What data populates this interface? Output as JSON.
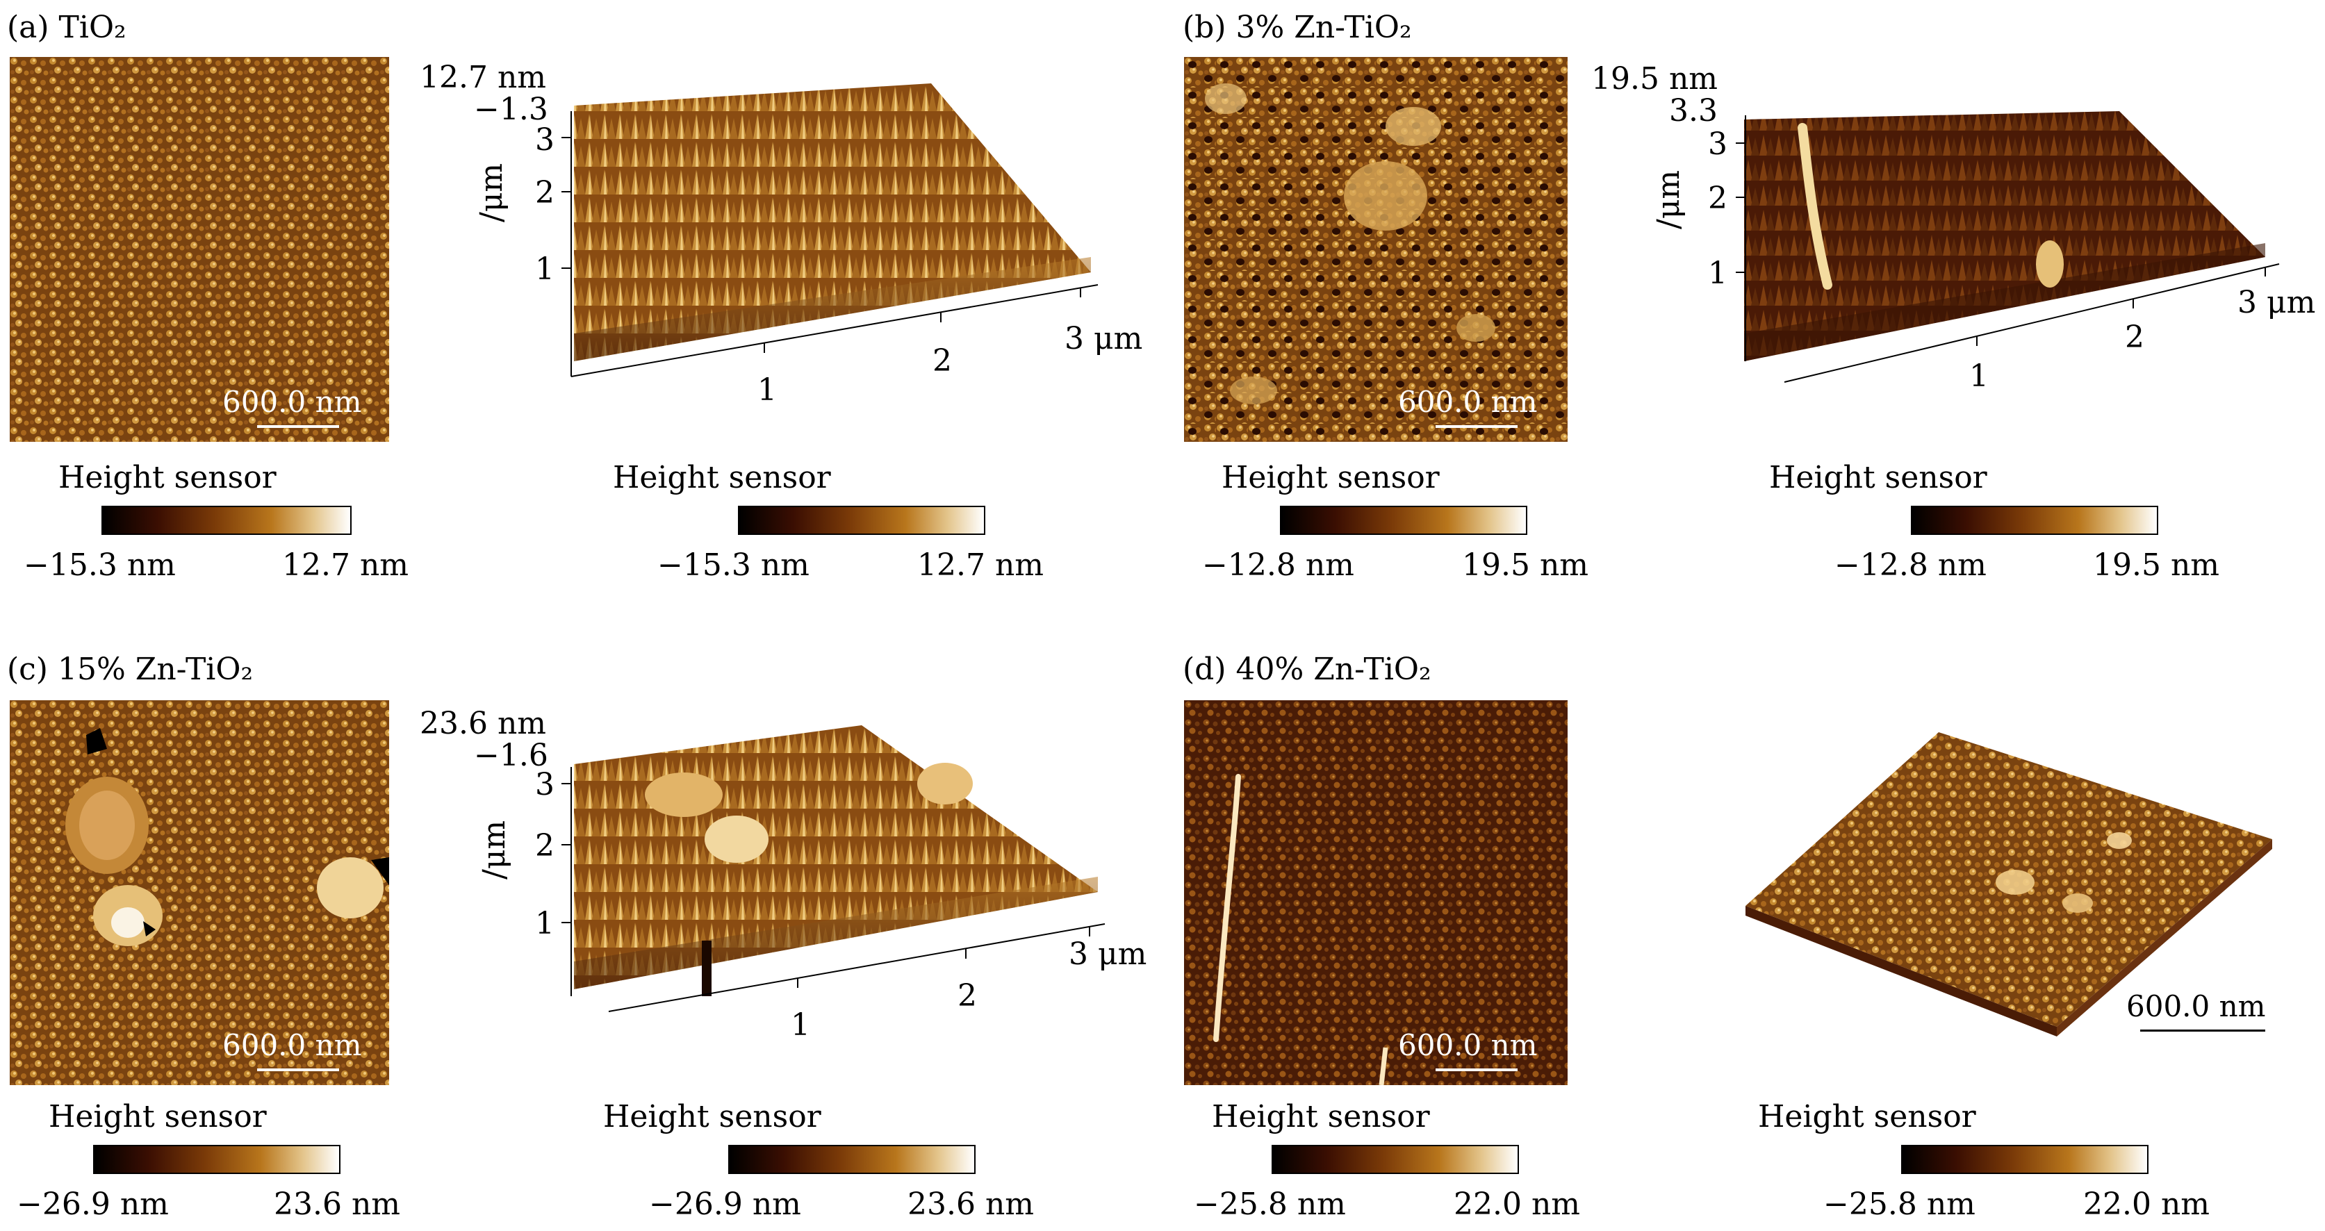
{
  "colors": {
    "afm_dark": "#3a1606",
    "afm_mid": "#9a5a16",
    "afm_light": "#e0b060",
    "colorbar_stops": [
      "#000000",
      "#3a0e02",
      "#7a3a08",
      "#b8761c",
      "#e3c48a",
      "#ffffff"
    ]
  },
  "panels": {
    "a": {
      "label": "(a) TiO₂",
      "scale_bar": "600.0 nm",
      "height_sensor_2d": "Height sensor",
      "height_sensor_3d": "Height sensor",
      "cbar_min": "−15.3 nm",
      "cbar_max": "12.7 nm",
      "z_top": "12.7 nm",
      "z_bottom": "−1.3",
      "y_axis_label": "/μm",
      "y_ticks": [
        "3",
        "2",
        "1"
      ],
      "x_ticks": [
        "1",
        "2",
        "3 μm"
      ]
    },
    "b": {
      "label": "(b) 3% Zn-TiO₂",
      "scale_bar": "600.0 nm",
      "height_sensor_2d": "Height sensor",
      "height_sensor_3d": "Height sensor",
      "cbar_min": "−12.8 nm",
      "cbar_max": "19.5 nm",
      "z_top": "19.5 nm",
      "z_bottom": "3.3",
      "y_axis_label": "/μm",
      "y_ticks": [
        "3",
        "2",
        "1"
      ],
      "x_ticks": [
        "1",
        "2",
        "3 μm"
      ]
    },
    "c": {
      "label": "(c) 15% Zn-TiO₂",
      "scale_bar": "600.0 nm",
      "height_sensor_2d": "Height sensor",
      "height_sensor_3d": "Height sensor",
      "cbar_min": "−26.9 nm",
      "cbar_max": "23.6 nm",
      "z_top": "23.6 nm",
      "z_bottom": "−1.6",
      "y_axis_label": "/μm",
      "y_ticks": [
        "3",
        "2",
        "1"
      ],
      "x_ticks": [
        "1",
        "2",
        "3 μm"
      ]
    },
    "d": {
      "label": "(d) 40% Zn-TiO₂",
      "scale_bar": "600.0 nm",
      "scale_bar_3d": "600.0 nm",
      "height_sensor_2d": "Height sensor",
      "height_sensor_3d": "Height sensor",
      "cbar_min": "−25.8 nm",
      "cbar_max": "22.0 nm"
    }
  }
}
